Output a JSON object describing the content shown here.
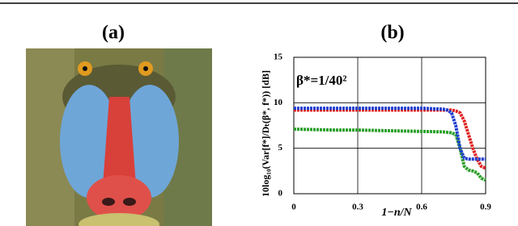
{
  "panel_a": {
    "label": "(a)"
  },
  "chart_data": {
    "type": "line",
    "title": "(b)",
    "ylabel": "10log₁₀(Var[f*]/Dₜ(β*, f*)) [dB]",
    "xlabel": "1−n/N",
    "annotation": "β*=1/40²",
    "x": [
      0,
      0.1,
      0.2,
      0.3,
      0.4,
      0.5,
      0.6,
      0.7,
      0.72,
      0.74,
      0.76,
      0.78,
      0.8,
      0.82,
      0.84,
      0.86,
      0.88,
      0.9
    ],
    "series": [
      {
        "color": "#2ca02c",
        "values": [
          7.1,
          7.05,
          7.0,
          7.0,
          6.95,
          6.9,
          6.85,
          6.8,
          6.75,
          6.7,
          6.5,
          5,
          3,
          2.6,
          2.5,
          2.3,
          1.7,
          1.5
        ]
      },
      {
        "color": "#e02020",
        "values": [
          9.2,
          9.2,
          9.2,
          9.2,
          9.2,
          9.2,
          9.2,
          9.2,
          9.2,
          9.2,
          9.1,
          8.9,
          8,
          6.5,
          5,
          3.8,
          3,
          2.8
        ]
      },
      {
        "color": "#1f3fd0",
        "values": [
          9.4,
          9.4,
          9.4,
          9.4,
          9.4,
          9.4,
          9.4,
          9.3,
          9.2,
          8.9,
          7.5,
          5,
          3.9,
          3.8,
          3.8,
          3.8,
          3.8,
          3.8
        ]
      }
    ],
    "xlim": [
      0,
      0.9
    ],
    "xticks": [
      0,
      0.3,
      0.6,
      0.9
    ],
    "ylim": [
      0,
      15
    ],
    "yticks": [
      0,
      5,
      10,
      15
    ],
    "grid": true
  }
}
